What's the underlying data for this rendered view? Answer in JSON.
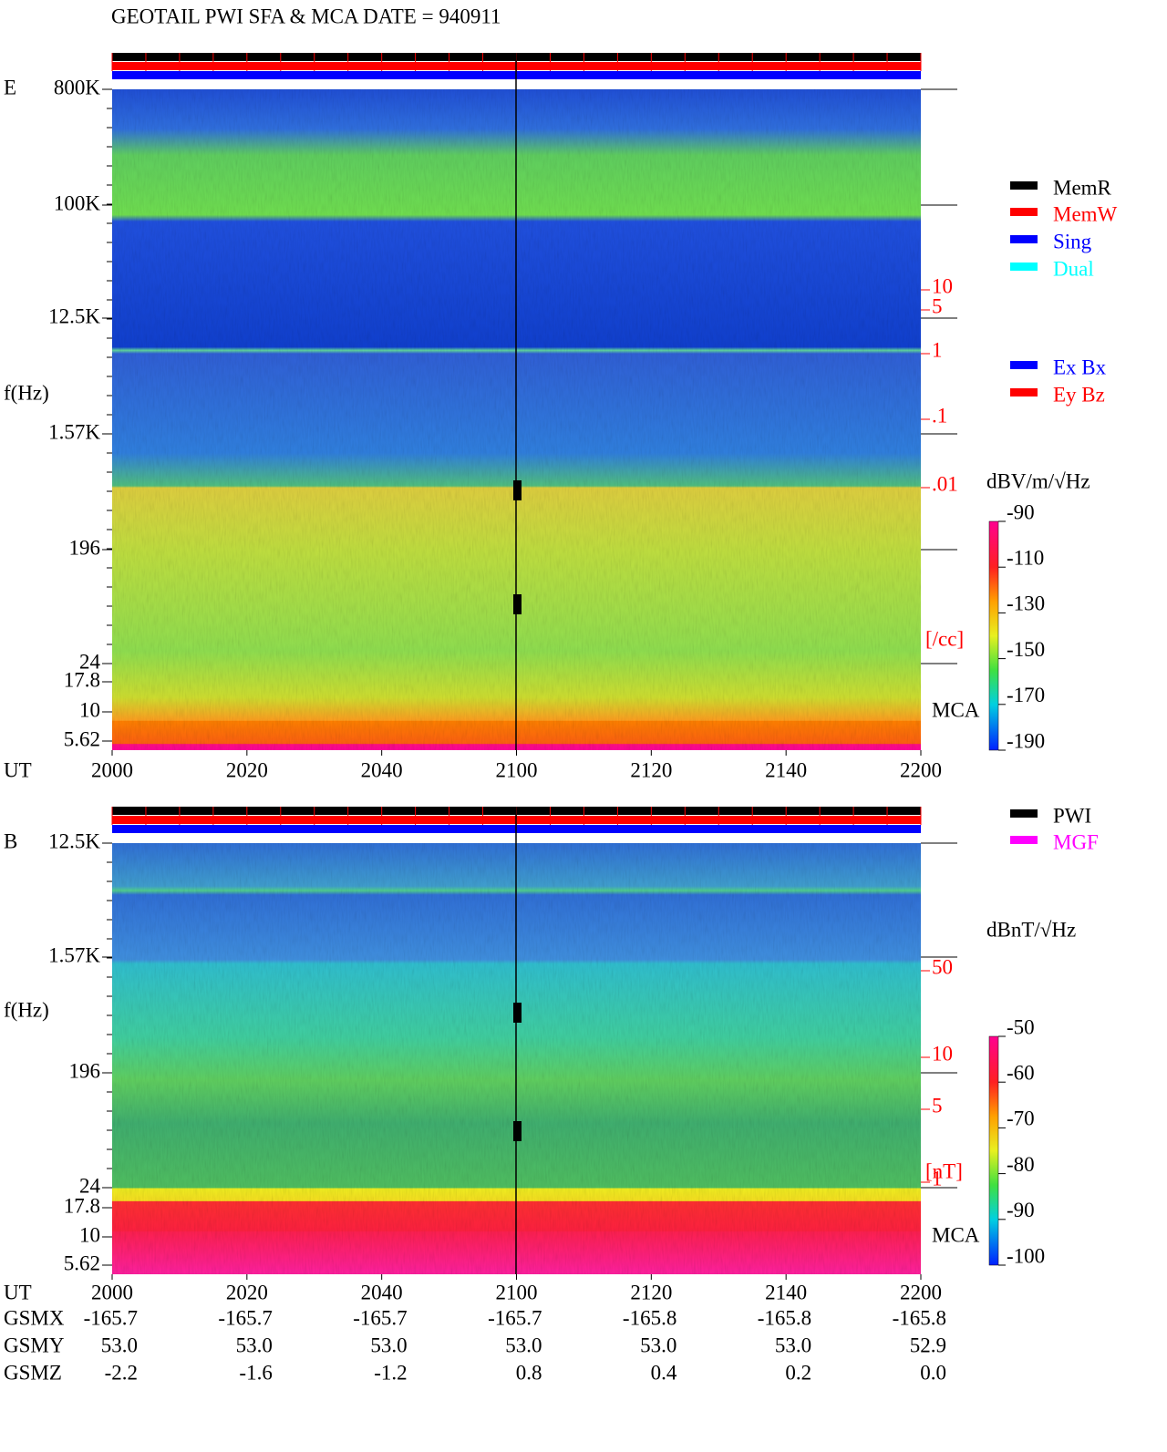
{
  "title": "GEOTAIL  PWI SFA & MCA   DATE = 940911",
  "panels": [
    {
      "label": "E",
      "ylabel": "f(Hz)",
      "yticks": [
        "800K",
        "100K",
        "12.5K",
        "1.57K",
        "196",
        "24",
        "17.8",
        "10",
        "5.62"
      ],
      "xlabel": "UT",
      "xticks": [
        "2000",
        "2020",
        "2040",
        "2100",
        "2120",
        "2140",
        "2200"
      ],
      "mca": "MCA",
      "right_scale": [
        "10",
        "5",
        "1",
        ".1",
        ".01"
      ],
      "right_unit": "[/cc]",
      "legend": [
        {
          "name": "MemR",
          "color": "#000000"
        },
        {
          "name": "MemW",
          "color": "#ff0000"
        },
        {
          "name": "Sing",
          "color": "#0000ff"
        },
        {
          "name": "Dual",
          "color": "#00ffff"
        }
      ],
      "legend2": [
        {
          "name": "Ex Bx",
          "color": "#0000ff"
        },
        {
          "name": "Ey Bz",
          "color": "#ff0000"
        }
      ],
      "colorbar_title": "dBV/m/√Hz",
      "colorbar_ticks": [
        -90,
        -110,
        -130,
        -150,
        -170,
        -190
      ]
    },
    {
      "label": "B",
      "ylabel": "f(Hz)",
      "yticks": [
        "12.5K",
        "1.57K",
        "196",
        "24",
        "17.8",
        "10",
        "5.62"
      ],
      "xlabel": "UT",
      "xticks": [
        "2000",
        "2020",
        "2040",
        "2100",
        "2120",
        "2140",
        "2200"
      ],
      "mca": "MCA",
      "right_scale": [
        "50",
        "10",
        "5",
        "1"
      ],
      "right_unit": "[nT]",
      "legend": [
        {
          "name": "PWI",
          "color": "#000000"
        },
        {
          "name": "MGF",
          "color": "#ff00ff"
        }
      ],
      "colorbar_title": "dBnT/√Hz",
      "colorbar_ticks": [
        -50,
        -60,
        -70,
        -80,
        -90,
        -100
      ]
    }
  ],
  "orbit": [
    {
      "name": "GSMX",
      "values": [
        "-165.7",
        "-165.7",
        "-165.7",
        "-165.7",
        "-165.8",
        "-165.8",
        "-165.8"
      ]
    },
    {
      "name": "GSMY",
      "values": [
        "53.0",
        "53.0",
        "53.0",
        "53.0",
        "53.0",
        "53.0",
        "52.9"
      ]
    },
    {
      "name": "GSMZ",
      "values": [
        "-2.2",
        "-1.6",
        "-1.2",
        "0.8",
        "0.4",
        "0.2",
        "0.0"
      ]
    }
  ]
}
